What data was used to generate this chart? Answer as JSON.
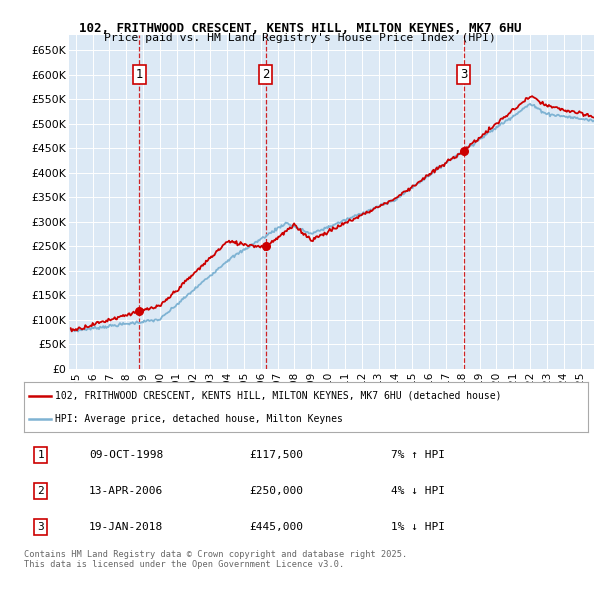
{
  "title": "102, FRITHWOOD CRESCENT, KENTS HILL, MILTON KEYNES, MK7 6HU",
  "subtitle": "Price paid vs. HM Land Registry's House Price Index (HPI)",
  "ylim": [
    0,
    680000
  ],
  "yticks": [
    0,
    50000,
    100000,
    150000,
    200000,
    250000,
    300000,
    350000,
    400000,
    450000,
    500000,
    550000,
    600000,
    650000
  ],
  "ytick_labels": [
    "£0",
    "£50K",
    "£100K",
    "£150K",
    "£200K",
    "£250K",
    "£300K",
    "£350K",
    "£400K",
    "£450K",
    "£500K",
    "£550K",
    "£600K",
    "£650K"
  ],
  "bg_color": "#dce9f5",
  "line_color_red": "#cc0000",
  "line_color_blue": "#7fb3d3",
  "sale_dates": [
    1998.78,
    2006.29,
    2018.05
  ],
  "sale_prices": [
    117500,
    250000,
    445000
  ],
  "sale_labels": [
    "1",
    "2",
    "3"
  ],
  "legend_line1": "102, FRITHWOOD CRESCENT, KENTS HILL, MILTON KEYNES, MK7 6HU (detached house)",
  "legend_line2": "HPI: Average price, detached house, Milton Keynes",
  "table_rows": [
    [
      "1",
      "09-OCT-1998",
      "£117,500",
      "7% ↑ HPI"
    ],
    [
      "2",
      "13-APR-2006",
      "£250,000",
      "4% ↓ HPI"
    ],
    [
      "3",
      "19-JAN-2018",
      "£445,000",
      "1% ↓ HPI"
    ]
  ],
  "footnote": "Contains HM Land Registry data © Crown copyright and database right 2025.\nThis data is licensed under the Open Government Licence v3.0.",
  "xmin": 1994.6,
  "xmax": 2025.8,
  "x_tick_years": [
    1995,
    1996,
    1997,
    1998,
    1999,
    2000,
    2001,
    2002,
    2003,
    2004,
    2005,
    2006,
    2007,
    2008,
    2009,
    2010,
    2011,
    2012,
    2013,
    2014,
    2015,
    2016,
    2017,
    2018,
    2019,
    2020,
    2021,
    2022,
    2023,
    2024,
    2025
  ]
}
